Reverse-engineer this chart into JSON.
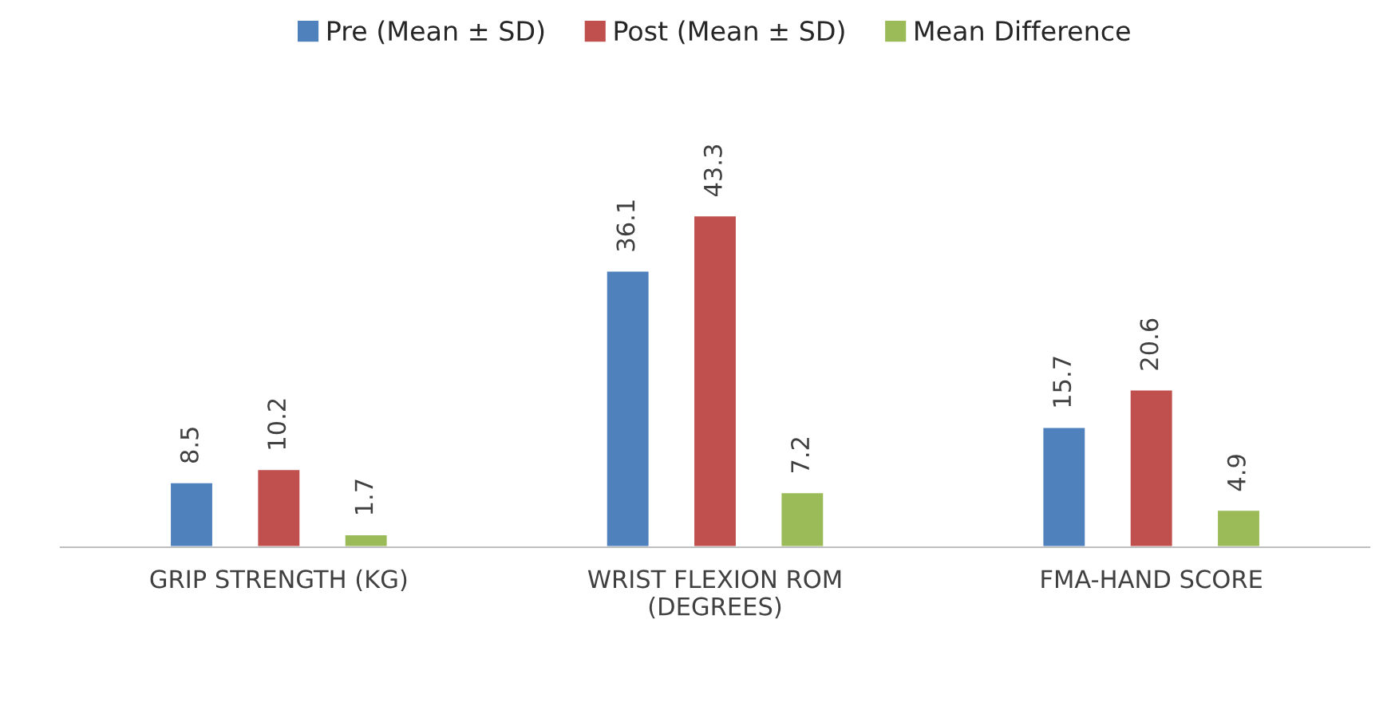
{
  "chart_data": {
    "type": "bar",
    "categories": [
      "GRIP STRENGTH (KG)",
      "WRIST FLEXION ROM\n(DEGREES)",
      "FMA-HAND SCORE"
    ],
    "series": [
      {
        "name": "Pre (Mean ± SD)",
        "color": "#4f81bd",
        "values": [
          8.5,
          36.1,
          15.7
        ]
      },
      {
        "name": "Post (Mean ± SD)",
        "color": "#c0504d",
        "values": [
          10.2,
          43.3,
          20.6
        ]
      },
      {
        "name": "Mean Difference",
        "color": "#9bbb59",
        "values": [
          1.7,
          7.2,
          4.9
        ]
      }
    ],
    "data_labels": true,
    "legend": "top",
    "grid": false
  }
}
